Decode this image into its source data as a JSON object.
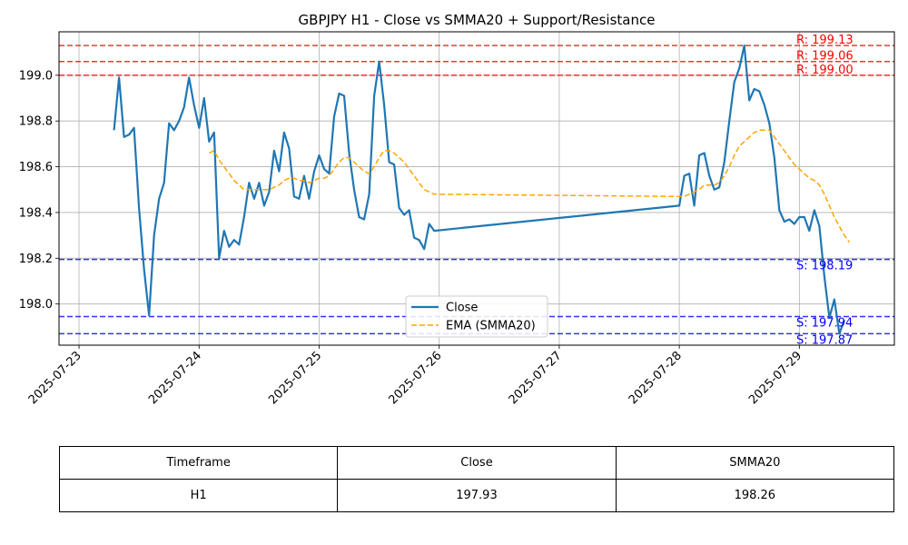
{
  "chart_data": {
    "type": "line",
    "title": "GBPJPY H1 - Close vs SMMA20 + Support/Resistance",
    "xlabel": "",
    "ylabel": "",
    "x_ticks": [
      "2025-07-23",
      "2025-07-24",
      "2025-07-25",
      "2025-07-26",
      "2025-07-27",
      "2025-07-28",
      "2025-07-29"
    ],
    "y_ticks": [
      "198.0",
      "198.2",
      "198.4",
      "198.6",
      "198.8",
      "199.0"
    ],
    "ylim": [
      197.82,
      199.19
    ],
    "xlim": [
      "2025-07-22 20:00",
      "2025-07-29 19:00"
    ],
    "grid": true,
    "legend_position": "lower center",
    "series": [
      {
        "name": "Close",
        "color": "#1f77b4",
        "style": "solid",
        "points": [
          [
            "2025-07-23 07:00",
            198.76
          ],
          [
            "2025-07-23 08:00",
            198.99
          ],
          [
            "2025-07-23 09:00",
            198.73
          ],
          [
            "2025-07-23 10:00",
            198.74
          ],
          [
            "2025-07-23 11:00",
            198.77
          ],
          [
            "2025-07-23 12:00",
            198.42
          ],
          [
            "2025-07-23 13:00",
            198.15
          ],
          [
            "2025-07-23 14:00",
            197.95
          ],
          [
            "2025-07-23 15:00",
            198.3
          ],
          [
            "2025-07-23 16:00",
            198.46
          ],
          [
            "2025-07-23 17:00",
            198.53
          ],
          [
            "2025-07-23 18:00",
            198.79
          ],
          [
            "2025-07-23 19:00",
            198.76
          ],
          [
            "2025-07-23 20:00",
            198.8
          ],
          [
            "2025-07-23 21:00",
            198.86
          ],
          [
            "2025-07-23 22:00",
            198.99
          ],
          [
            "2025-07-23 23:00",
            198.87
          ],
          [
            "2025-07-24 00:00",
            198.77
          ],
          [
            "2025-07-24 01:00",
            198.9
          ],
          [
            "2025-07-24 02:00",
            198.71
          ],
          [
            "2025-07-24 03:00",
            198.75
          ],
          [
            "2025-07-24 04:00",
            198.2
          ],
          [
            "2025-07-24 05:00",
            198.32
          ],
          [
            "2025-07-24 06:00",
            198.25
          ],
          [
            "2025-07-24 07:00",
            198.28
          ],
          [
            "2025-07-24 08:00",
            198.26
          ],
          [
            "2025-07-24 09:00",
            198.38
          ],
          [
            "2025-07-24 10:00",
            198.53
          ],
          [
            "2025-07-24 11:00",
            198.46
          ],
          [
            "2025-07-24 12:00",
            198.53
          ],
          [
            "2025-07-24 13:00",
            198.43
          ],
          [
            "2025-07-24 14:00",
            198.49
          ],
          [
            "2025-07-24 15:00",
            198.67
          ],
          [
            "2025-07-24 16:00",
            198.58
          ],
          [
            "2025-07-24 17:00",
            198.75
          ],
          [
            "2025-07-24 18:00",
            198.68
          ],
          [
            "2025-07-24 19:00",
            198.47
          ],
          [
            "2025-07-24 20:00",
            198.46
          ],
          [
            "2025-07-24 21:00",
            198.56
          ],
          [
            "2025-07-24 22:00",
            198.46
          ],
          [
            "2025-07-24 23:00",
            198.58
          ],
          [
            "2025-07-25 00:00",
            198.65
          ],
          [
            "2025-07-25 01:00",
            198.59
          ],
          [
            "2025-07-25 02:00",
            198.57
          ],
          [
            "2025-07-25 03:00",
            198.82
          ],
          [
            "2025-07-25 04:00",
            198.92
          ],
          [
            "2025-07-25 05:00",
            198.91
          ],
          [
            "2025-07-25 06:00",
            198.66
          ],
          [
            "2025-07-25 07:00",
            198.5
          ],
          [
            "2025-07-25 08:00",
            198.38
          ],
          [
            "2025-07-25 09:00",
            198.37
          ],
          [
            "2025-07-25 10:00",
            198.48
          ],
          [
            "2025-07-25 11:00",
            198.91
          ],
          [
            "2025-07-25 12:00",
            199.06
          ],
          [
            "2025-07-25 13:00",
            198.87
          ],
          [
            "2025-07-25 14:00",
            198.62
          ],
          [
            "2025-07-25 15:00",
            198.61
          ],
          [
            "2025-07-25 16:00",
            198.42
          ],
          [
            "2025-07-25 17:00",
            198.39
          ],
          [
            "2025-07-25 18:00",
            198.41
          ],
          [
            "2025-07-25 19:00",
            198.29
          ],
          [
            "2025-07-25 20:00",
            198.28
          ],
          [
            "2025-07-25 21:00",
            198.24
          ],
          [
            "2025-07-25 22:00",
            198.35
          ],
          [
            "2025-07-25 23:00",
            198.32
          ],
          [
            "2025-07-28 00:00",
            198.43
          ],
          [
            "2025-07-28 01:00",
            198.56
          ],
          [
            "2025-07-28 02:00",
            198.57
          ],
          [
            "2025-07-28 03:00",
            198.43
          ],
          [
            "2025-07-28 04:00",
            198.65
          ],
          [
            "2025-07-28 05:00",
            198.66
          ],
          [
            "2025-07-28 06:00",
            198.56
          ],
          [
            "2025-07-28 07:00",
            198.5
          ],
          [
            "2025-07-28 08:00",
            198.51
          ],
          [
            "2025-07-28 09:00",
            198.62
          ],
          [
            "2025-07-28 10:00",
            198.8
          ],
          [
            "2025-07-28 11:00",
            198.97
          ],
          [
            "2025-07-28 12:00",
            199.03
          ],
          [
            "2025-07-28 13:00",
            199.13
          ],
          [
            "2025-07-28 14:00",
            198.89
          ],
          [
            "2025-07-28 15:00",
            198.94
          ],
          [
            "2025-07-28 16:00",
            198.93
          ],
          [
            "2025-07-28 17:00",
            198.87
          ],
          [
            "2025-07-28 18:00",
            198.79
          ],
          [
            "2025-07-28 19:00",
            198.64
          ],
          [
            "2025-07-28 20:00",
            198.41
          ],
          [
            "2025-07-28 21:00",
            198.36
          ],
          [
            "2025-07-28 22:00",
            198.37
          ],
          [
            "2025-07-28 23:00",
            198.35
          ],
          [
            "2025-07-29 00:00",
            198.38
          ],
          [
            "2025-07-29 01:00",
            198.38
          ],
          [
            "2025-07-29 02:00",
            198.32
          ],
          [
            "2025-07-29 03:00",
            198.41
          ],
          [
            "2025-07-29 04:00",
            198.34
          ],
          [
            "2025-07-29 05:00",
            198.12
          ],
          [
            "2025-07-29 06:00",
            197.94
          ],
          [
            "2025-07-29 07:00",
            198.02
          ],
          [
            "2025-07-29 08:00",
            197.87
          ],
          [
            "2025-07-29 09:00",
            197.93
          ]
        ]
      },
      {
        "name": "EMA (SMMA20)",
        "color": "#ffa500",
        "style": "dashed",
        "points": [
          [
            "2025-07-24 02:00",
            198.66
          ],
          [
            "2025-07-24 03:00",
            198.67
          ],
          [
            "2025-07-24 04:00",
            198.63
          ],
          [
            "2025-07-24 05:00",
            198.6
          ],
          [
            "2025-07-24 06:00",
            198.57
          ],
          [
            "2025-07-24 07:00",
            198.54
          ],
          [
            "2025-07-24 08:00",
            198.52
          ],
          [
            "2025-07-24 09:00",
            198.5
          ],
          [
            "2025-07-24 10:00",
            198.5
          ],
          [
            "2025-07-24 11:00",
            198.5
          ],
          [
            "2025-07-24 12:00",
            198.5
          ],
          [
            "2025-07-24 13:00",
            198.5
          ],
          [
            "2025-07-24 14:00",
            198.5
          ],
          [
            "2025-07-24 15:00",
            198.51
          ],
          [
            "2025-07-24 16:00",
            198.52
          ],
          [
            "2025-07-24 17:00",
            198.54
          ],
          [
            "2025-07-24 18:00",
            198.55
          ],
          [
            "2025-07-24 19:00",
            198.55
          ],
          [
            "2025-07-24 20:00",
            198.54
          ],
          [
            "2025-07-24 21:00",
            198.54
          ],
          [
            "2025-07-24 22:00",
            198.53
          ],
          [
            "2025-07-24 23:00",
            198.54
          ],
          [
            "2025-07-25 00:00",
            198.55
          ],
          [
            "2025-07-25 01:00",
            198.55
          ],
          [
            "2025-07-25 02:00",
            198.56
          ],
          [
            "2025-07-25 03:00",
            198.59
          ],
          [
            "2025-07-25 04:00",
            198.62
          ],
          [
            "2025-07-25 05:00",
            198.64
          ],
          [
            "2025-07-25 06:00",
            198.64
          ],
          [
            "2025-07-25 07:00",
            198.62
          ],
          [
            "2025-07-25 08:00",
            198.6
          ],
          [
            "2025-07-25 09:00",
            198.58
          ],
          [
            "2025-07-25 10:00",
            198.57
          ],
          [
            "2025-07-25 11:00",
            198.6
          ],
          [
            "2025-07-25 12:00",
            198.64
          ],
          [
            "2025-07-25 13:00",
            198.67
          ],
          [
            "2025-07-25 14:00",
            198.67
          ],
          [
            "2025-07-25 15:00",
            198.66
          ],
          [
            "2025-07-25 16:00",
            198.64
          ],
          [
            "2025-07-25 17:00",
            198.62
          ],
          [
            "2025-07-25 18:00",
            198.59
          ],
          [
            "2025-07-25 19:00",
            198.56
          ],
          [
            "2025-07-25 20:00",
            198.53
          ],
          [
            "2025-07-25 21:00",
            198.5
          ],
          [
            "2025-07-25 22:00",
            198.49
          ],
          [
            "2025-07-25 23:00",
            198.48
          ],
          [
            "2025-07-28 00:00",
            198.47
          ],
          [
            "2025-07-28 01:00",
            198.47
          ],
          [
            "2025-07-28 02:00",
            198.48
          ],
          [
            "2025-07-28 03:00",
            198.49
          ],
          [
            "2025-07-28 04:00",
            198.5
          ],
          [
            "2025-07-28 05:00",
            198.52
          ],
          [
            "2025-07-28 06:00",
            198.52
          ],
          [
            "2025-07-28 07:00",
            198.52
          ],
          [
            "2025-07-28 08:00",
            198.53
          ],
          [
            "2025-07-28 09:00",
            198.56
          ],
          [
            "2025-07-28 10:00",
            198.6
          ],
          [
            "2025-07-28 11:00",
            198.65
          ],
          [
            "2025-07-28 12:00",
            198.69
          ],
          [
            "2025-07-28 13:00",
            198.71
          ],
          [
            "2025-07-28 14:00",
            198.73
          ],
          [
            "2025-07-28 15:00",
            198.75
          ],
          [
            "2025-07-28 16:00",
            198.76
          ],
          [
            "2025-07-28 17:00",
            198.76
          ],
          [
            "2025-07-28 18:00",
            198.76
          ],
          [
            "2025-07-28 19:00",
            198.73
          ],
          [
            "2025-07-28 20:00",
            198.7
          ],
          [
            "2025-07-28 21:00",
            198.67
          ],
          [
            "2025-07-28 22:00",
            198.64
          ],
          [
            "2025-07-28 23:00",
            198.61
          ],
          [
            "2025-07-29 00:00",
            198.59
          ],
          [
            "2025-07-29 01:00",
            198.57
          ],
          [
            "2025-07-29 02:00",
            198.55
          ],
          [
            "2025-07-29 03:00",
            198.54
          ],
          [
            "2025-07-29 04:00",
            198.52
          ],
          [
            "2025-07-29 05:00",
            198.48
          ],
          [
            "2025-07-29 06:00",
            198.43
          ],
          [
            "2025-07-29 07:00",
            198.38
          ],
          [
            "2025-07-29 08:00",
            198.34
          ],
          [
            "2025-07-29 09:00",
            198.3
          ],
          [
            "2025-07-29 10:00",
            198.27
          ]
        ]
      }
    ],
    "resistance_levels": [
      {
        "value": 199.13,
        "label": "R: 199.13"
      },
      {
        "value": 199.06,
        "label": "R: 199.06"
      },
      {
        "value": 199.0,
        "label": "R: 199.00"
      }
    ],
    "support_levels": [
      {
        "value": 198.195,
        "label": "S: 198.19"
      },
      {
        "value": 197.945,
        "label": "S: 197.94"
      },
      {
        "value": 197.87,
        "label": "S: 197.87"
      }
    ],
    "level_colors": {
      "resistance": "#ff0000",
      "support": "#0000ff"
    }
  },
  "table": {
    "headers": [
      "Timeframe",
      "Close",
      "SMMA20"
    ],
    "rows": [
      [
        "H1",
        "197.93",
        "198.26"
      ]
    ]
  }
}
